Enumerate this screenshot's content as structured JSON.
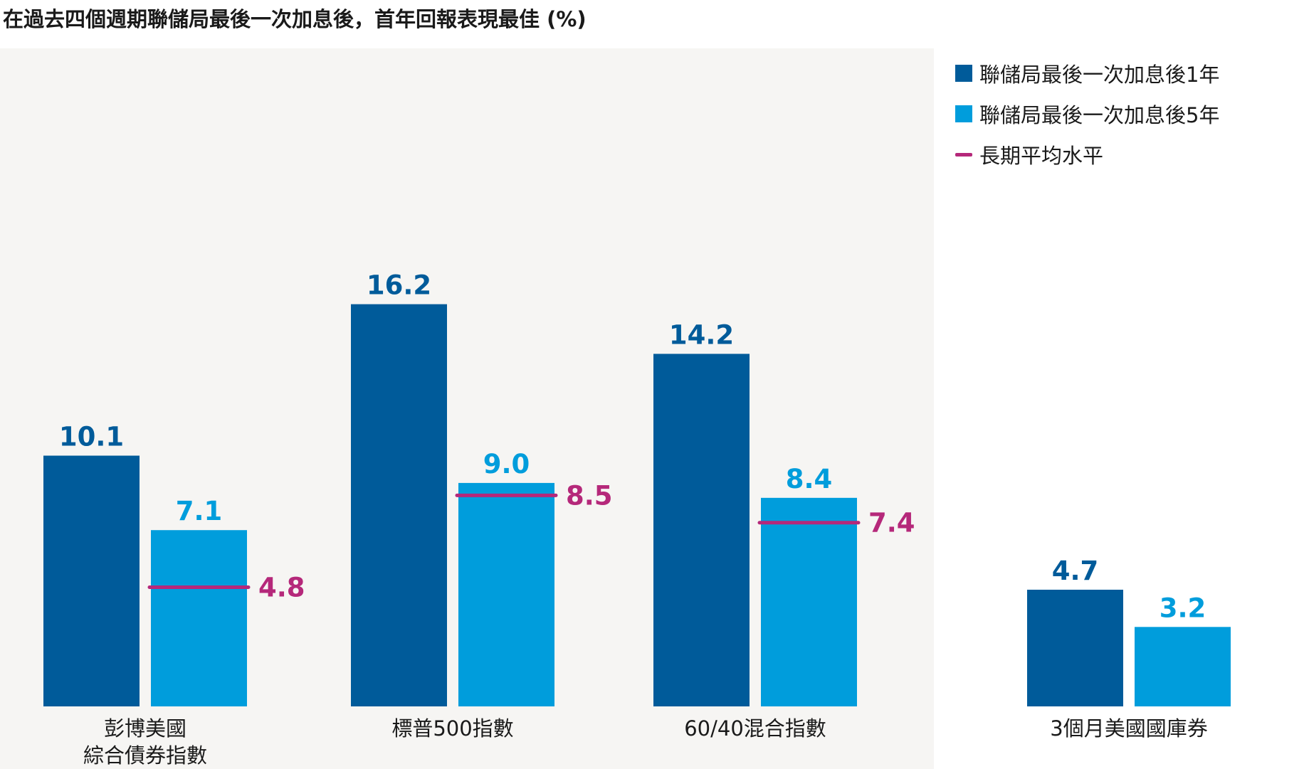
{
  "title": "在過去四個週期聯儲局最後一次加息後，首年回報表現最佳 (%)",
  "colors": {
    "series1": "#005b9a",
    "series2": "#009ddc",
    "avg": "#b5287a",
    "plot_bg": "#f6f5f3"
  },
  "legend": {
    "series1": "聯儲局最後一次加息後1年",
    "series2": "聯儲局最後一次加息後5年",
    "avg": "長期平均水平"
  },
  "chart_data": {
    "type": "bar",
    "title": "在過去四個週期聯儲局最後一次加息後，首年回報表現最佳 (%)",
    "categories": [
      "彭博美國\n綜合債券指數",
      "標普500指數",
      "60/40混合指數",
      "3個月美國國庫券"
    ],
    "series": [
      {
        "name": "聯儲局最後一次加息後1年",
        "values": [
          10.1,
          16.2,
          14.2,
          4.7
        ],
        "labels": [
          "10.1",
          "16.2",
          "14.2",
          "4.7"
        ]
      },
      {
        "name": "聯儲局最後一次加息後5年",
        "values": [
          7.1,
          9.0,
          8.4,
          3.2
        ],
        "labels": [
          "7.1",
          "9.0",
          "8.4",
          "3.2"
        ]
      },
      {
        "name": "長期平均水平",
        "values": [
          4.8,
          8.5,
          7.4,
          null
        ],
        "labels": [
          "4.8",
          "8.5",
          "7.4",
          ""
        ]
      }
    ],
    "ylim": [
      0,
      17
    ],
    "grid": false,
    "legend_position": "top-right"
  }
}
